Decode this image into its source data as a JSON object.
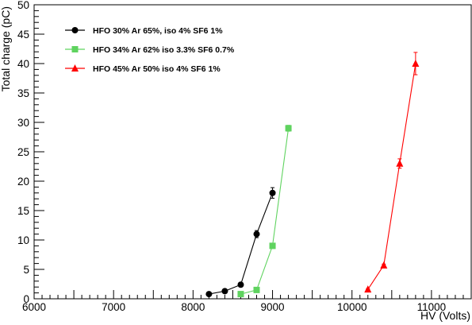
{
  "chart_data": {
    "type": "line",
    "xlabel": "HV (Volts)",
    "ylabel": "Total charge (pC)",
    "xlim": [
      6000,
      11500
    ],
    "ylim": [
      0,
      50
    ],
    "x_ticks": [
      6000,
      7000,
      8000,
      9000,
      10000,
      11000
    ],
    "x_tick_labels": [
      "6000",
      "7000",
      "8000",
      "9000",
      "10000",
      "11000"
    ],
    "y_ticks": [
      0,
      5,
      10,
      15,
      20,
      25,
      30,
      35,
      40,
      45,
      50
    ],
    "y_tick_labels": [
      "0",
      "5",
      "10",
      "15",
      "20",
      "25",
      "30",
      "35",
      "40",
      "45",
      "50"
    ],
    "grid": false,
    "legend_position": "top-left",
    "series": [
      {
        "name": "HFO 30% Ar 65%, iso 4% SF6 1%",
        "color": "#000000",
        "marker": "circle",
        "x": [
          8200,
          8400,
          8600,
          8800,
          9000
        ],
        "y": [
          0.8,
          1.3,
          2.4,
          11.0,
          18.0
        ],
        "yerr": [
          0.1,
          0.1,
          0.2,
          0.6,
          0.9
        ]
      },
      {
        "name": "HFO 34% Ar 62% iso 3.3% SF6 0.7%",
        "color": "#5fd35f",
        "marker": "square",
        "x": [
          8600,
          8800,
          9000,
          9200
        ],
        "y": [
          0.8,
          1.5,
          9.0,
          29.0
        ],
        "yerr": [
          0.1,
          0.1,
          0.3,
          0.5
        ]
      },
      {
        "name": "HFO 45% Ar 50% iso 4% SF6 1%",
        "color": "#ff0000",
        "marker": "triangle",
        "x": [
          10200,
          10400,
          10600,
          10800
        ],
        "y": [
          1.6,
          5.7,
          23.0,
          40.0
        ],
        "yerr": [
          0.1,
          0.2,
          0.8,
          1.9
        ]
      }
    ]
  }
}
